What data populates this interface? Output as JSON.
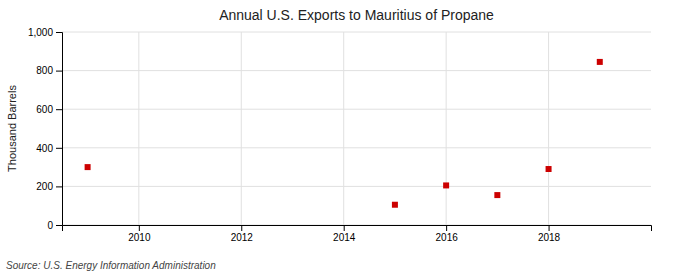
{
  "chart_data": {
    "type": "scatter",
    "title": "Annual U.S. Exports to Mauritius of Propane",
    "y_label": "Thousand Barrels",
    "source": "Source: U.S. Energy Information Administration",
    "x": [
      2009,
      2015,
      2016,
      2017,
      2018,
      2019
    ],
    "values": [
      300,
      105,
      205,
      155,
      290,
      845
    ],
    "color": "#cc0000",
    "marker": "square",
    "xlim": [
      2008.5,
      2020.0
    ],
    "xticks": [
      2010,
      2012,
      2014,
      2016,
      2018
    ],
    "ylim": [
      0,
      1000
    ],
    "yticks": [
      0,
      200,
      400,
      600,
      800,
      {
        "value": 1000,
        "label": "1,000"
      }
    ],
    "grid": true
  }
}
